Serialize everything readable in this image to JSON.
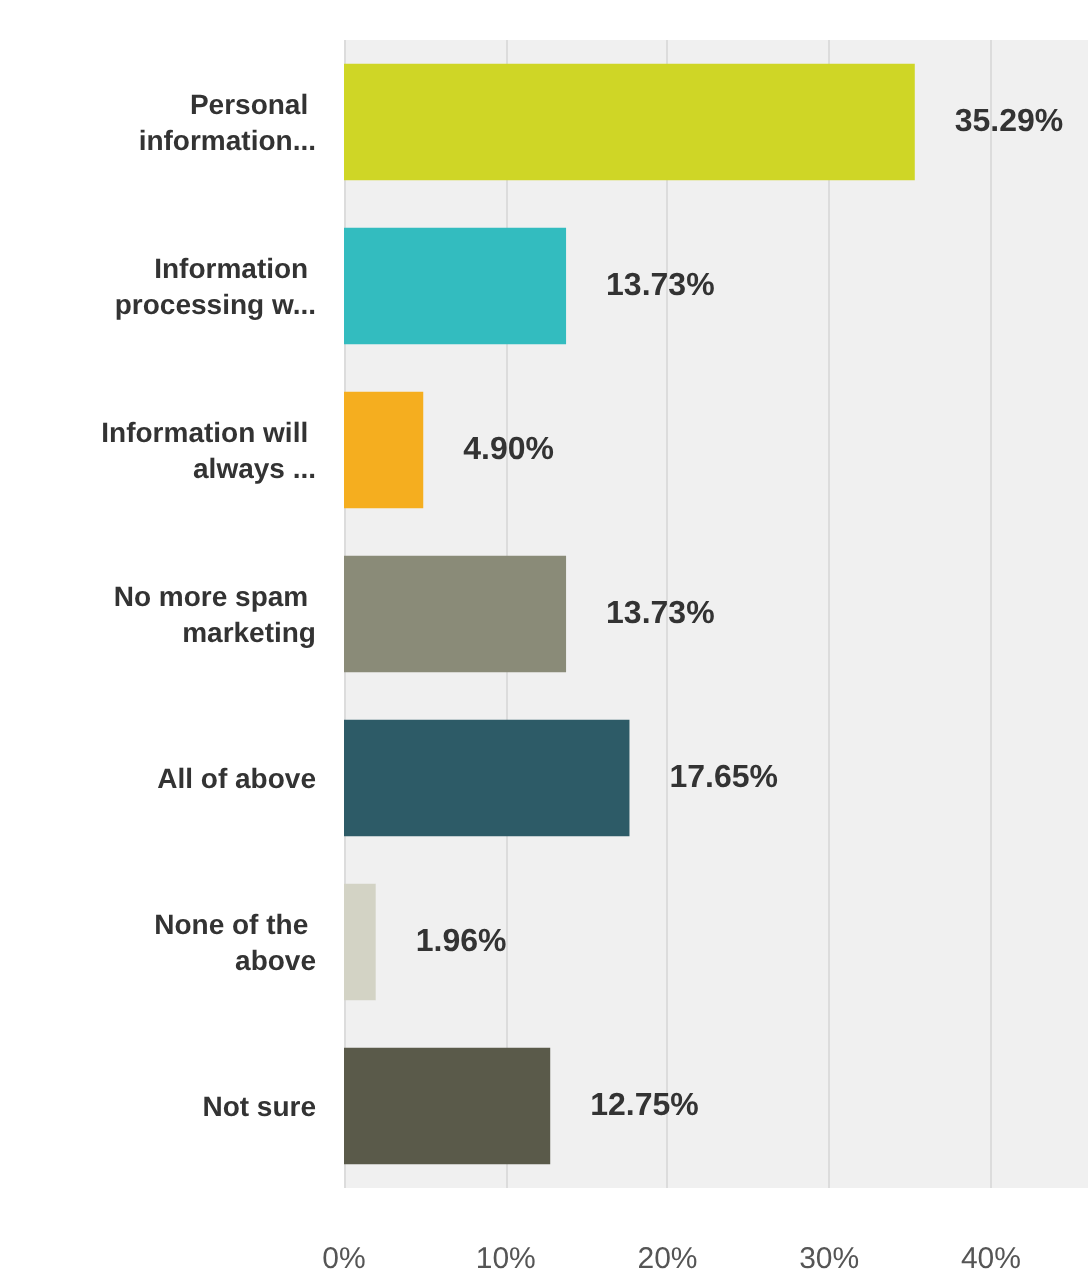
{
  "chart_data": {
    "type": "bar",
    "orientation": "horizontal",
    "categories": [
      "Personal information...",
      "Information processing w...",
      "Information will always ...",
      "No more spam marketing",
      "All of above",
      "None of the above",
      "Not sure"
    ],
    "values": [
      35.29,
      13.73,
      4.9,
      13.73,
      17.65,
      1.96,
      12.75
    ],
    "colors": [
      "#cfd626",
      "#33bcbf",
      "#f5ae1f",
      "#8a8b78",
      "#2d5b67",
      "#d3d3c5",
      "#5a5a4a"
    ],
    "value_labels": [
      "35.29%",
      "13.73%",
      "4.90%",
      "13.73%",
      "17.65%",
      "1.96%",
      "12.75%"
    ],
    "xlim": [
      0,
      46
    ],
    "xticks": [
      {
        "value": 0,
        "label": "0%"
      },
      {
        "value": 10,
        "label": "10%"
      },
      {
        "value": 20,
        "label": "20%"
      },
      {
        "value": 30,
        "label": "30%"
      },
      {
        "value": 40,
        "label": "40%"
      }
    ],
    "grid": "x"
  }
}
